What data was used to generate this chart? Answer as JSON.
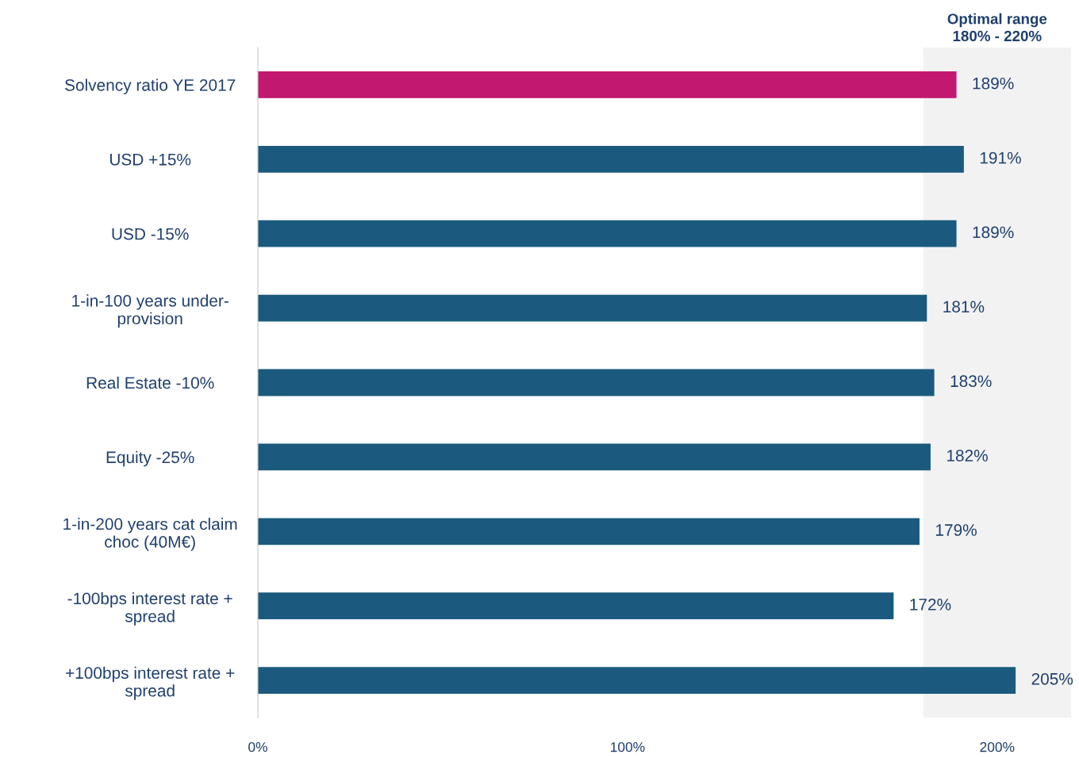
{
  "chart_data": {
    "type": "bar",
    "orientation": "horizontal",
    "categories": [
      "Solvency ratio YE 2017",
      "USD +15%",
      "USD -15%",
      "1-in-100 years under-\nprovision",
      "Real Estate -10%",
      "Equity -25%",
      "1-in-200 years cat claim\nchoc (40M€)",
      "-100bps interest rate +\nspread",
      "+100bps interest rate +\nspread"
    ],
    "values": [
      189,
      191,
      189,
      181,
      183,
      182,
      179,
      172,
      205
    ],
    "colors": [
      "#c2186f",
      "#1b5a7e",
      "#1b5a7e",
      "#1b5a7e",
      "#1b5a7e",
      "#1b5a7e",
      "#1b5a7e",
      "#1b5a7e",
      "#1b5a7e"
    ],
    "value_labels": [
      "189%",
      "191%",
      "189%",
      "181%",
      "183%",
      "182%",
      "179%",
      "172%",
      "205%"
    ],
    "xlim": [
      0,
      220
    ],
    "xticks": [
      {
        "value": 0,
        "label": "0%"
      },
      {
        "value": 100,
        "label": "100%"
      },
      {
        "value": 200,
        "label": "200%"
      }
    ],
    "bands": [
      {
        "axis": "x",
        "from": 180,
        "to": 220,
        "label": "Optimal range\n180% - 220%",
        "color": "#f2f2f2"
      }
    ],
    "grid": false,
    "legend": false
  }
}
